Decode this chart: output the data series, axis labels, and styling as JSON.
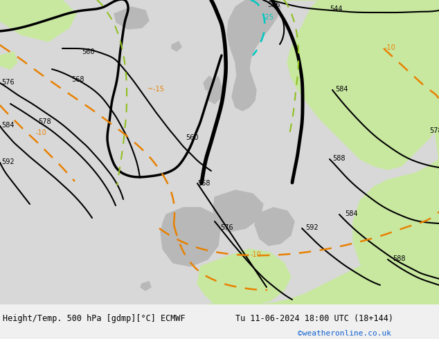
{
  "title_left": "Height/Temp. 500 hPa [gdmp][°C] ECMWF",
  "title_right": "Tu 11-06-2024 18:00 UTC (18+144)",
  "credit": "©weatheronline.co.uk",
  "bg_light_gray": "#d8d8d8",
  "bg_sea_color": "#d8d8d8",
  "land_green": "#c8e8a0",
  "land_gray": "#b8b8b8",
  "black": "#000000",
  "orange": "#e88000",
  "cyan": "#00c8c0",
  "yellow_green": "#90c020",
  "fig_width": 6.34,
  "fig_height": 4.9,
  "dpi": 100,
  "credit_color": "#1060d0"
}
